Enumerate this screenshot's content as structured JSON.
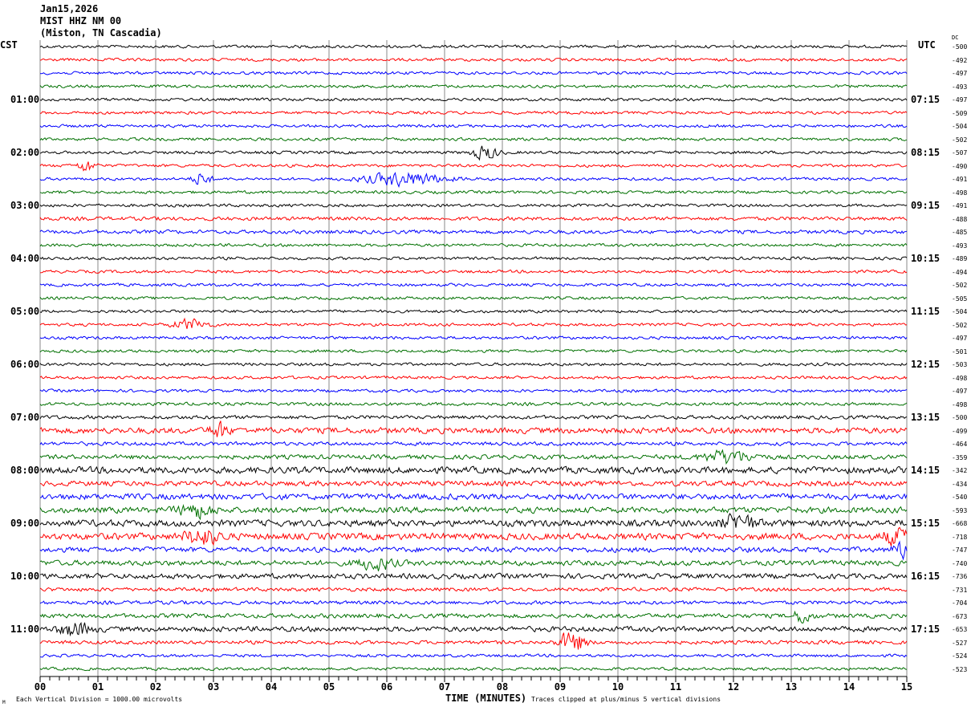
{
  "header": {
    "date": "Jan15,2026",
    "station": "MIST HHZ NM 00",
    "location": "(Miston, TN Cascadia)"
  },
  "left_timezone": "CST",
  "right_timezone": "UTC",
  "dc_label": "DC",
  "chart_data": {
    "type": "line",
    "subtype": "helicorder",
    "xlabel": "TIME (MINUTES)",
    "xlim": [
      0,
      15
    ],
    "x_ticks": [
      "00",
      "01",
      "02",
      "03",
      "04",
      "05",
      "06",
      "07",
      "08",
      "09",
      "10",
      "11",
      "12",
      "13",
      "14",
      "15"
    ],
    "left_hour_labels": [
      "01:00",
      "02:00",
      "03:00",
      "04:00",
      "05:00",
      "06:00",
      "07:00",
      "08:00",
      "09:00",
      "10:00",
      "11:00"
    ],
    "right_hour_labels": [
      "07:15",
      "08:15",
      "09:15",
      "10:15",
      "11:15",
      "12:15",
      "13:15",
      "14:15",
      "15:15",
      "16:15",
      "17:15"
    ],
    "trace_colors": [
      "#000000",
      "#ff0000",
      "#0000ff",
      "#007000"
    ],
    "dc_offsets": [
      -500,
      -492,
      -497,
      -493,
      -497,
      -509,
      -504,
      -502,
      -507,
      -490,
      -491,
      -498,
      -491,
      -488,
      -485,
      -493,
      -489,
      -494,
      -502,
      -505,
      -504,
      -502,
      -497,
      -501,
      -503,
      -498,
      -497,
      -498,
      -500,
      -499,
      -464,
      -359,
      -342,
      -434,
      -540,
      -593,
      -668,
      -718,
      -747,
      -740,
      -736,
      -731,
      -704,
      -673,
      -653,
      -527,
      -524,
      -523
    ],
    "noise_level": [
      0.4,
      0.4,
      0.4,
      0.4,
      0.4,
      0.4,
      0.4,
      0.4,
      0.4,
      0.4,
      0.4,
      0.4,
      0.4,
      0.5,
      0.5,
      0.4,
      0.4,
      0.4,
      0.4,
      0.4,
      0.4,
      0.4,
      0.4,
      0.4,
      0.4,
      0.4,
      0.4,
      0.45,
      0.5,
      0.8,
      0.5,
      0.6,
      0.9,
      0.7,
      0.8,
      0.8,
      0.9,
      0.9,
      0.7,
      0.7,
      0.7,
      0.5,
      0.5,
      0.6,
      0.7,
      0.5,
      0.4,
      0.4
    ],
    "events": [
      {
        "trace": 8,
        "minute": 7.7,
        "width": 0.3,
        "amp": 1.3
      },
      {
        "trace": 9,
        "minute": 0.8,
        "width": 0.2,
        "amp": 1.2
      },
      {
        "trace": 10,
        "minute": 2.8,
        "width": 0.2,
        "amp": 1.3
      },
      {
        "trace": 10,
        "minute": 6.3,
        "width": 0.9,
        "amp": 1.3
      },
      {
        "trace": 21,
        "minute": 2.6,
        "width": 0.4,
        "amp": 1.0
      },
      {
        "trace": 29,
        "minute": 3.1,
        "width": 0.2,
        "amp": 1.6
      },
      {
        "trace": 31,
        "minute": 11.9,
        "width": 0.6,
        "amp": 1.2
      },
      {
        "trace": 35,
        "minute": 2.7,
        "width": 0.4,
        "amp": 1.3
      },
      {
        "trace": 36,
        "minute": 12.1,
        "width": 0.4,
        "amp": 1.6
      },
      {
        "trace": 37,
        "minute": 2.8,
        "width": 0.4,
        "amp": 1.6
      },
      {
        "trace": 37,
        "minute": 14.8,
        "width": 0.3,
        "amp": 1.4
      },
      {
        "trace": 38,
        "minute": 14.9,
        "width": 0.2,
        "amp": 1.5
      },
      {
        "trace": 39,
        "minute": 5.8,
        "width": 0.4,
        "amp": 1.2
      },
      {
        "trace": 43,
        "minute": 13.2,
        "width": 0.2,
        "amp": 1.4
      },
      {
        "trace": 44,
        "minute": 0.6,
        "width": 0.4,
        "amp": 1.2
      },
      {
        "trace": 45,
        "minute": 9.2,
        "width": 0.3,
        "amp": 2.2
      }
    ]
  },
  "footer": {
    "scale_note": "Each Vertical Division = 1000.00 microvolts",
    "clip_note": "Traces clipped at plus/minus 5 vertical divisions",
    "corner_mark": "M"
  }
}
